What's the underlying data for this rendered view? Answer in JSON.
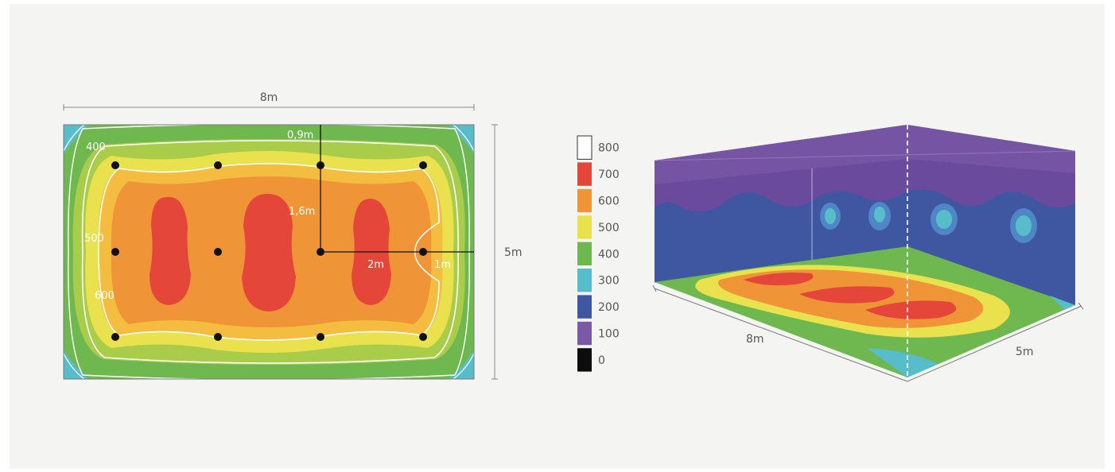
{
  "plan": {
    "width_label": "8m",
    "height_label": "5m",
    "contour_labels": {
      "c400": "400",
      "c500": "500",
      "c600": "600"
    },
    "distance_labels": {
      "d09": "0,9m",
      "d16": "1,6m",
      "d2": "2m",
      "d1": "1m"
    },
    "luminaire_rows": 3,
    "luminaire_cols": 4
  },
  "legend": {
    "items": [
      {
        "value": "800",
        "color": "#ffffff"
      },
      {
        "value": "700",
        "color": "#e4473a"
      },
      {
        "value": "600",
        "color": "#ef9538"
      },
      {
        "value": "500",
        "color": "#e9e14e"
      },
      {
        "value": "400",
        "color": "#6fb850"
      },
      {
        "value": "300",
        "color": "#58bdcb"
      },
      {
        "value": "200",
        "color": "#3f56a1"
      },
      {
        "value": "100",
        "color": "#7a5aa6"
      },
      {
        "value": "0",
        "color": "#0d0d0d"
      }
    ]
  },
  "room3d": {
    "length_label": "8m",
    "width_label": "5m"
  }
}
